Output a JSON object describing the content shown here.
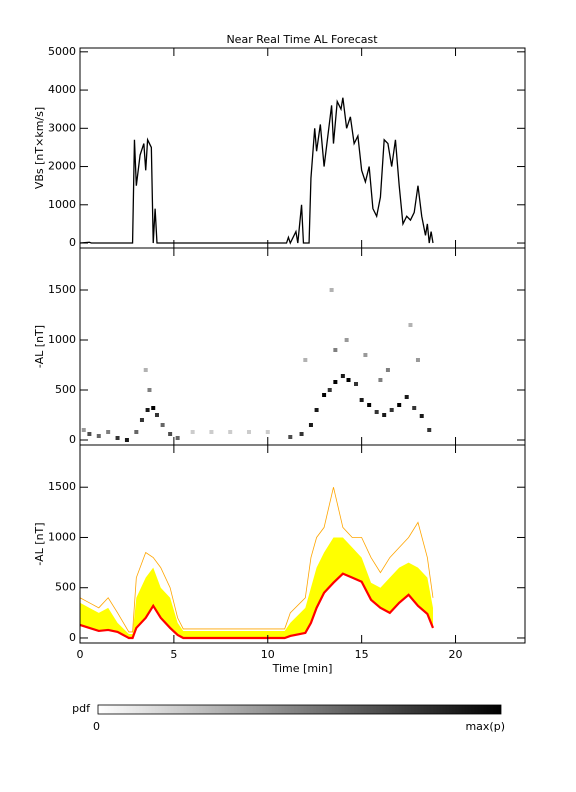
{
  "chart_data": [
    {
      "type": "line",
      "title": "Near Real Time AL Forecast",
      "ylabel": "VBs [nT×km/s]",
      "xlim": [
        0,
        23.7
      ],
      "xticks": [
        0,
        5,
        10,
        15,
        20
      ],
      "ylim": [
        -130,
        5100
      ],
      "yticks": [
        0,
        1000,
        2000,
        3000,
        4000,
        5000
      ],
      "series": [
        {
          "color": "#000000",
          "x": [
            0,
            0.5,
            0.6,
            2.8,
            2.9,
            3.0,
            3.2,
            3.4,
            3.5,
            3.6,
            3.8,
            3.9,
            4.0,
            4.1,
            11.0,
            11.1,
            11.2,
            11.5,
            11.6,
            11.8,
            11.9,
            12.2,
            12.3,
            12.5,
            12.6,
            12.8,
            13.0,
            13.2,
            13.4,
            13.5,
            13.7,
            13.9,
            14.0,
            14.2,
            14.4,
            14.6,
            14.8,
            15.0,
            15.2,
            15.4,
            15.6,
            15.8,
            16.0,
            16.2,
            16.4,
            16.6,
            16.8,
            17.0,
            17.2,
            17.4,
            17.6,
            17.8,
            18.0,
            18.2,
            18.4,
            18.5,
            18.6,
            18.7,
            18.8
          ],
          "values": [
            0,
            20,
            0,
            0,
            2700,
            1500,
            2300,
            2600,
            1900,
            2700,
            2500,
            0,
            900,
            0,
            0,
            150,
            0,
            300,
            0,
            1000,
            0,
            0,
            1700,
            3000,
            2400,
            3100,
            2000,
            2800,
            3600,
            2600,
            3700,
            3500,
            3800,
            3000,
            3300,
            2600,
            2800,
            1900,
            1600,
            2000,
            900,
            700,
            1200,
            2700,
            2600,
            2000,
            2700,
            1500,
            500,
            700,
            600,
            800,
            1500,
            700,
            200,
            500,
            0,
            300,
            0
          ]
        }
      ]
    },
    {
      "type": "heatmap",
      "ylabel": "-AL [nT]",
      "xlim": [
        0,
        23.7
      ],
      "xticks": [
        0,
        5,
        10,
        15,
        20
      ],
      "ylim": [
        -50,
        1920
      ],
      "yticks": [
        0,
        500,
        1000,
        1500
      ],
      "cells": [
        [
          0.2,
          100,
          0.4
        ],
        [
          0.5,
          60,
          0.7
        ],
        [
          1.0,
          40,
          0.6
        ],
        [
          1.5,
          80,
          0.5
        ],
        [
          2.0,
          20,
          0.8
        ],
        [
          2.5,
          0,
          0.9
        ],
        [
          3.0,
          80,
          0.6
        ],
        [
          3.3,
          200,
          0.8
        ],
        [
          3.6,
          300,
          0.9
        ],
        [
          3.9,
          320,
          1.0
        ],
        [
          4.1,
          250,
          0.8
        ],
        [
          4.4,
          150,
          0.6
        ],
        [
          4.8,
          60,
          0.7
        ],
        [
          3.7,
          500,
          0.5
        ],
        [
          3.5,
          700,
          0.3
        ],
        [
          5.2,
          20,
          0.6
        ],
        [
          6,
          80,
          0.2
        ],
        [
          7,
          80,
          0.2
        ],
        [
          8,
          80,
          0.2
        ],
        [
          9,
          80,
          0.2
        ],
        [
          10,
          80,
          0.2
        ],
        [
          11.2,
          30,
          0.7
        ],
        [
          11.8,
          60,
          0.8
        ],
        [
          12.3,
          150,
          0.9
        ],
        [
          12.6,
          300,
          0.9
        ],
        [
          13.0,
          450,
          1.0
        ],
        [
          13.3,
          500,
          0.8
        ],
        [
          13.6,
          580,
          1.0
        ],
        [
          14.0,
          640,
          0.9
        ],
        [
          14.3,
          600,
          1.0
        ],
        [
          14.7,
          560,
          0.8
        ],
        [
          15.0,
          400,
          0.9
        ],
        [
          15.4,
          350,
          1.0
        ],
        [
          15.8,
          280,
          0.8
        ],
        [
          16.2,
          250,
          0.9
        ],
        [
          16.6,
          300,
          0.8
        ],
        [
          17.0,
          350,
          1.0
        ],
        [
          17.4,
          430,
          0.9
        ],
        [
          17.8,
          320,
          0.8
        ],
        [
          18.2,
          240,
          0.9
        ],
        [
          18.6,
          100,
          0.8
        ],
        [
          13.4,
          1500,
          0.3
        ],
        [
          13.6,
          900,
          0.5
        ],
        [
          14.2,
          1000,
          0.4
        ],
        [
          16.4,
          700,
          0.5
        ],
        [
          17.6,
          1150,
          0.3
        ],
        [
          12.0,
          800,
          0.3
        ],
        [
          15.2,
          850,
          0.4
        ],
        [
          16.0,
          600,
          0.5
        ],
        [
          18.0,
          800,
          0.4
        ]
      ]
    },
    {
      "type": "band",
      "ylabel": "-AL [nT]",
      "xlabel": "Time [min]",
      "xlim": [
        0,
        23.7
      ],
      "xticks": [
        0,
        5,
        10,
        15,
        20
      ],
      "ylim": [
        -50,
        1920
      ],
      "yticks": [
        0,
        500,
        1000,
        1500
      ],
      "x": [
        0,
        0.5,
        1,
        1.5,
        2,
        2.6,
        2.8,
        3.0,
        3.5,
        3.9,
        4.3,
        4.8,
        5.2,
        5.5,
        8,
        10.9,
        11.2,
        12,
        12.3,
        12.6,
        13,
        13.5,
        14,
        14.5,
        15,
        15.5,
        16,
        16.5,
        17,
        17.5,
        18,
        18.5,
        18.8
      ],
      "series": [
        {
          "color": "#ffa500",
          "values": [
            400,
            350,
            300,
            400,
            250,
            60,
            60,
            600,
            850,
            800,
            700,
            500,
            200,
            90,
            90,
            90,
            250,
            400,
            800,
            1000,
            1100,
            1500,
            1100,
            1000,
            1000,
            800,
            650,
            800,
            900,
            1000,
            1150,
            800,
            400
          ]
        },
        {
          "color": "#ffff00",
          "values": [
            350,
            300,
            250,
            300,
            150,
            40,
            40,
            400,
            600,
            700,
            500,
            400,
            150,
            70,
            70,
            70,
            150,
            300,
            500,
            700,
            850,
            1000,
            1000,
            900,
            800,
            550,
            500,
            600,
            700,
            750,
            700,
            600,
            300
          ]
        },
        {
          "color": "#ff0000",
          "values": [
            130,
            100,
            70,
            80,
            60,
            0,
            0,
            100,
            200,
            320,
            200,
            100,
            30,
            0,
            0,
            0,
            20,
            50,
            150,
            300,
            450,
            550,
            640,
            600,
            560,
            380,
            300,
            250,
            350,
            430,
            320,
            240,
            100
          ]
        }
      ]
    }
  ],
  "colorbar": {
    "title": "pdf",
    "labels": [
      "0",
      "max(p)"
    ]
  }
}
